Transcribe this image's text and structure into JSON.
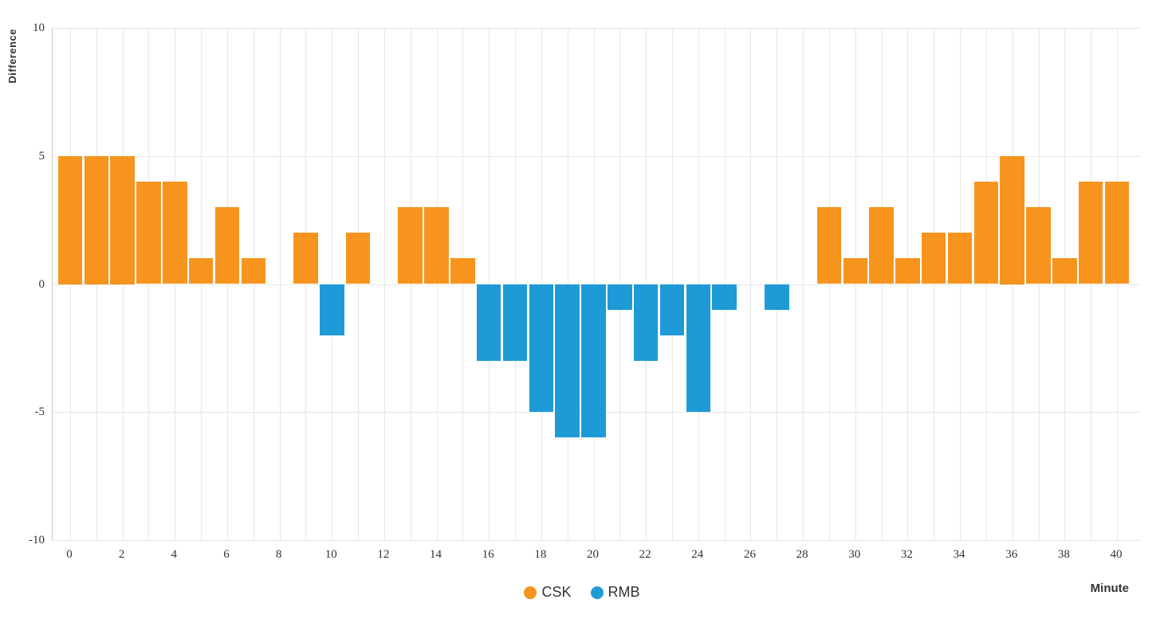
{
  "colors": {
    "background": "#FFFFFF",
    "grid": "#E7E7E7",
    "axis_line": "#CCCCCC",
    "tick_text": "#333333",
    "csk_orange": "#F7941E",
    "rmb_blue": "#1E9BD7"
  },
  "chart_data": {
    "type": "bar",
    "title": "",
    "xlabel": "Minute",
    "ylabel": "Difference",
    "ylim": [
      -10,
      10
    ],
    "yticks": [
      10,
      5,
      0,
      -5,
      -10
    ],
    "xticks": [
      0,
      2,
      4,
      6,
      8,
      10,
      12,
      14,
      16,
      18,
      20,
      22,
      24,
      26,
      28,
      30,
      32,
      34,
      36,
      38,
      40
    ],
    "grid": true,
    "legend_position": "bottom-center",
    "series": [
      {
        "name": "CSK",
        "color": "#F7941E",
        "applies_to": "positive"
      },
      {
        "name": "RMB",
        "color": "#1E9BD7",
        "applies_to": "negative"
      }
    ],
    "x": [
      0,
      1,
      2,
      3,
      4,
      5,
      6,
      7,
      8,
      9,
      10,
      11,
      12,
      13,
      14,
      15,
      16,
      17,
      18,
      19,
      20,
      21,
      22,
      23,
      24,
      25,
      26,
      27,
      28,
      29,
      30,
      31,
      32,
      33,
      34,
      35,
      36,
      37,
      38,
      39,
      40
    ],
    "values": [
      5,
      5,
      5,
      4,
      4,
      1,
      3,
      1,
      0,
      2,
      -2,
      2,
      0,
      3,
      3,
      1,
      -3,
      -3,
      -5,
      -6,
      -6,
      -1,
      -3,
      -2,
      -5,
      -1,
      0,
      -1,
      0,
      3,
      1,
      3,
      1,
      2,
      2,
      4,
      5,
      3,
      1,
      4,
      4
    ]
  }
}
